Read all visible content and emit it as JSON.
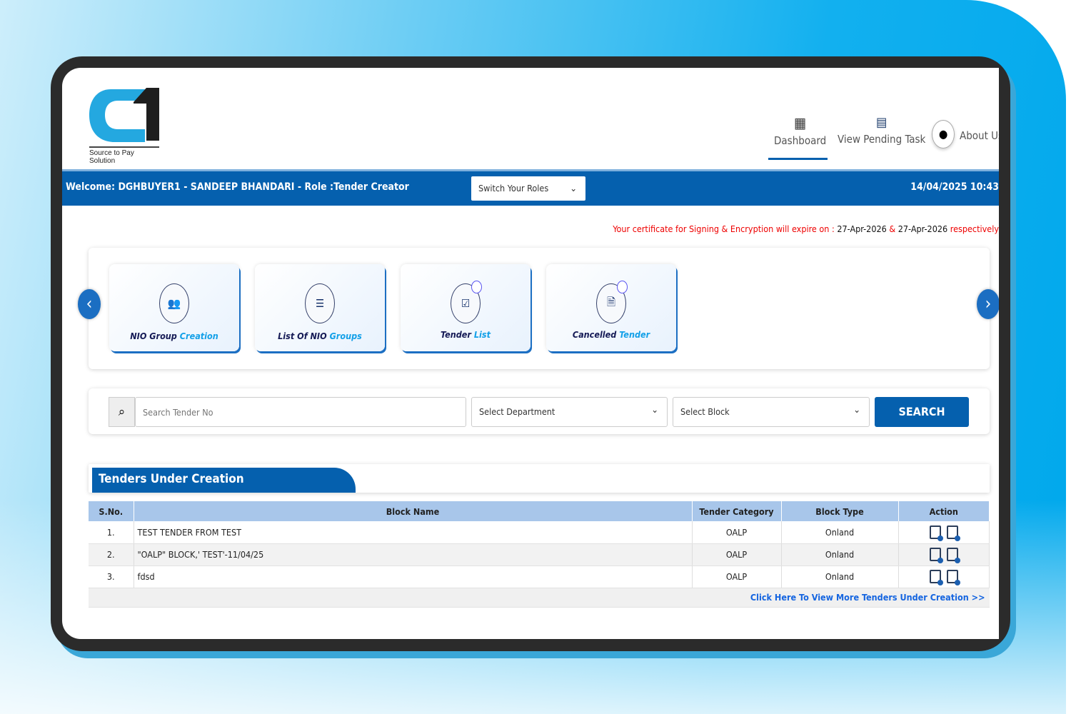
{
  "brand": {
    "logo_text": "C1",
    "tagline": "Source to Pay Solution"
  },
  "nav": {
    "items": [
      {
        "label": "Dashboard",
        "icon": "dashboard-icon",
        "active": true
      },
      {
        "label": "View Pending Task",
        "icon": "pending-task-icon"
      },
      {
        "label": "About Us",
        "icon": "user-icon"
      }
    ]
  },
  "header": {
    "welcome": "Welcome: DGHBUYER1 - SANDEEP BHANDARI - Role :Tender Creator",
    "switch_roles": "Switch Your Roles",
    "datetime": "14/04/2025 10:43"
  },
  "certificate": {
    "prefix": "Your certificate for Signing & Encryption will expire on :",
    "date1": "27-Apr-2026",
    "amp": "&",
    "date2": "27-Apr-2026",
    "suffix": "respectively"
  },
  "cards": [
    {
      "label_a": "NIO Group ",
      "label_b": "Creation",
      "icon": "group-icon"
    },
    {
      "label_a": "List Of NIO ",
      "label_b": "Groups",
      "icon": "list-user-icon"
    },
    {
      "label_a": "Tender ",
      "label_b": "List",
      "icon": "checklist-icon"
    },
    {
      "label_a": "Cancelled ",
      "label_b": "Tender",
      "icon": "cancel-document-icon"
    }
  ],
  "search": {
    "placeholder": "Search Tender No",
    "department": "Select Department",
    "block": "Select Block",
    "button": "SEARCH"
  },
  "tenders": {
    "title": "Tenders Under Creation",
    "columns": [
      "S.No.",
      "Block Name",
      "Tender Category",
      "Block Type",
      "Action"
    ],
    "rows": [
      {
        "sno": "1.",
        "name": "TEST TENDER FROM TEST",
        "category": "OALP",
        "type": "Onland"
      },
      {
        "sno": "2.",
        "name": "\"OALP\" BLOCK,' TEST'-11/04/25",
        "category": "OALP",
        "type": "Onland"
      },
      {
        "sno": "3.",
        "name": "fdsd",
        "category": "OALP",
        "type": "Onland"
      }
    ],
    "more_link": "Click Here To View More Tenders Under Creation >>"
  },
  "colors": {
    "primary": "#0560ae",
    "accent": "#13a0e8",
    "warning": "#e00000"
  }
}
